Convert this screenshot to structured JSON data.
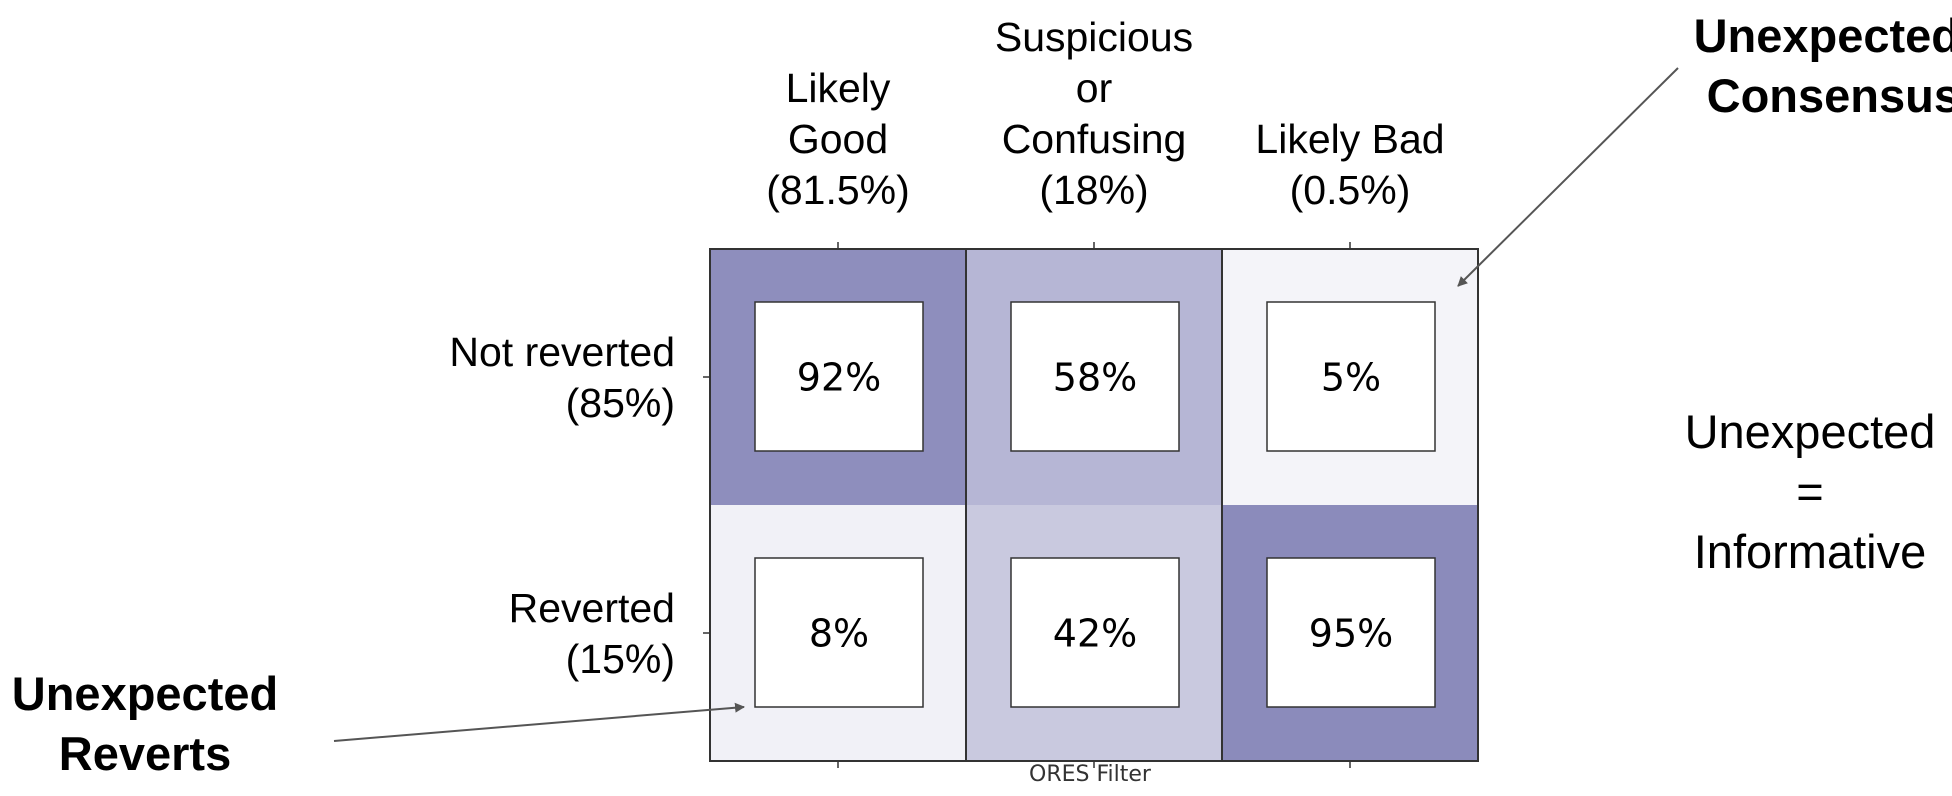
{
  "chart_data": {
    "type": "heatmap",
    "xlabel": "ORES Filter",
    "columns": [
      {
        "lines": [
          "Likely",
          "Good",
          "(81.5%)"
        ]
      },
      {
        "lines": [
          "Suspicious",
          "or",
          "Confusing",
          "(18%)"
        ]
      },
      {
        "lines": [
          "Likely Bad",
          "(0.5%)"
        ]
      }
    ],
    "rows": [
      {
        "lines": [
          "Not reverted",
          "(85%)"
        ]
      },
      {
        "lines": [
          "Reverted",
          "(15%)"
        ]
      }
    ],
    "cells": [
      [
        "92%",
        "58%",
        "5%"
      ],
      [
        "8%",
        "42%",
        "95%"
      ]
    ],
    "values": [
      [
        92,
        58,
        5
      ],
      [
        8,
        42,
        95
      ]
    ],
    "colors": {
      "low": "#fafafc",
      "high": "#8585b8",
      "grid": "#333333",
      "annotation_line": "#555555"
    }
  },
  "annotations": {
    "unexpected_consensus": [
      "Unexpected",
      "Consensus"
    ],
    "unexpected_reverts": [
      "Unexpected",
      "Reverts"
    ],
    "note": [
      "Unexpected",
      "=",
      "Informative"
    ]
  }
}
